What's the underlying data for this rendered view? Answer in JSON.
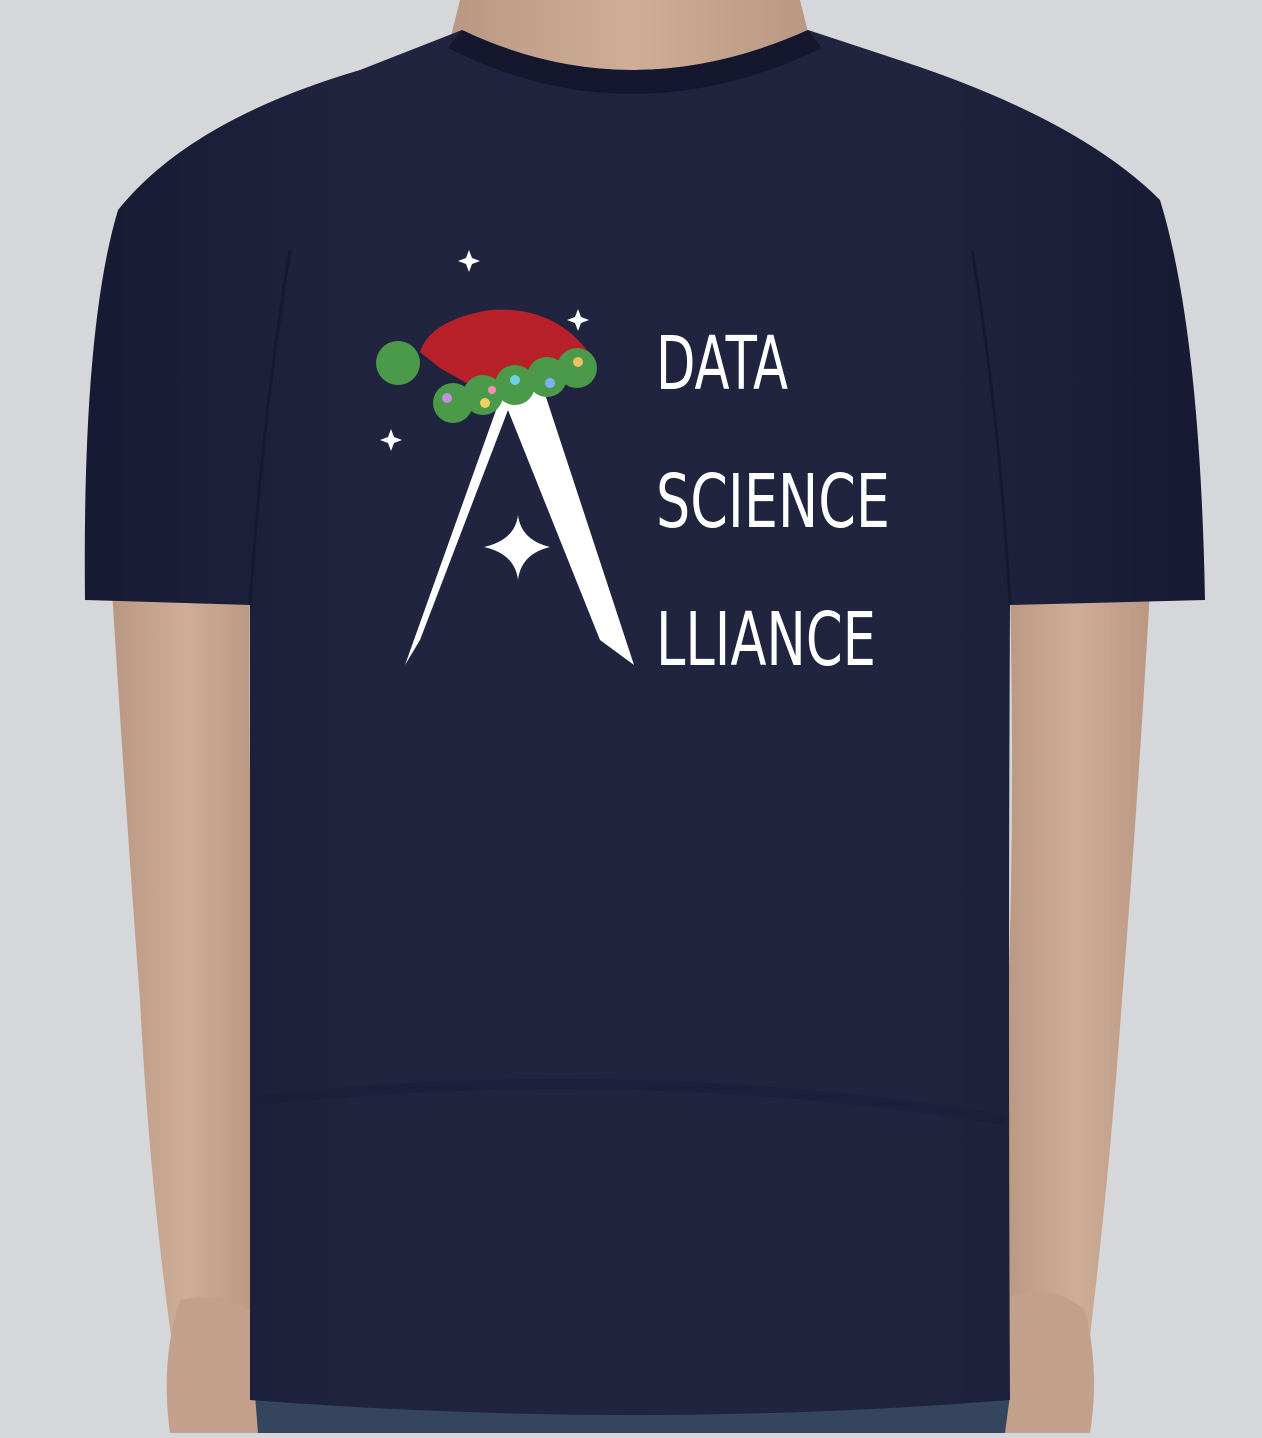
{
  "logo": {
    "line1": "DATA",
    "line2": "SCIENCE",
    "line3": "LLIANCE"
  },
  "colors": {
    "background": "#d6d7db",
    "shirt": "#1f2342",
    "skin": "#c9a892",
    "jeans": "#36455e",
    "hat_red": "#b8202a",
    "hat_green": "#4a9a4a",
    "logo_white": "#ffffff"
  },
  "icons": {
    "figure": "person-torso",
    "garment": "t-shirt",
    "hat": "santa-hat",
    "stars": "sparkle-star"
  }
}
